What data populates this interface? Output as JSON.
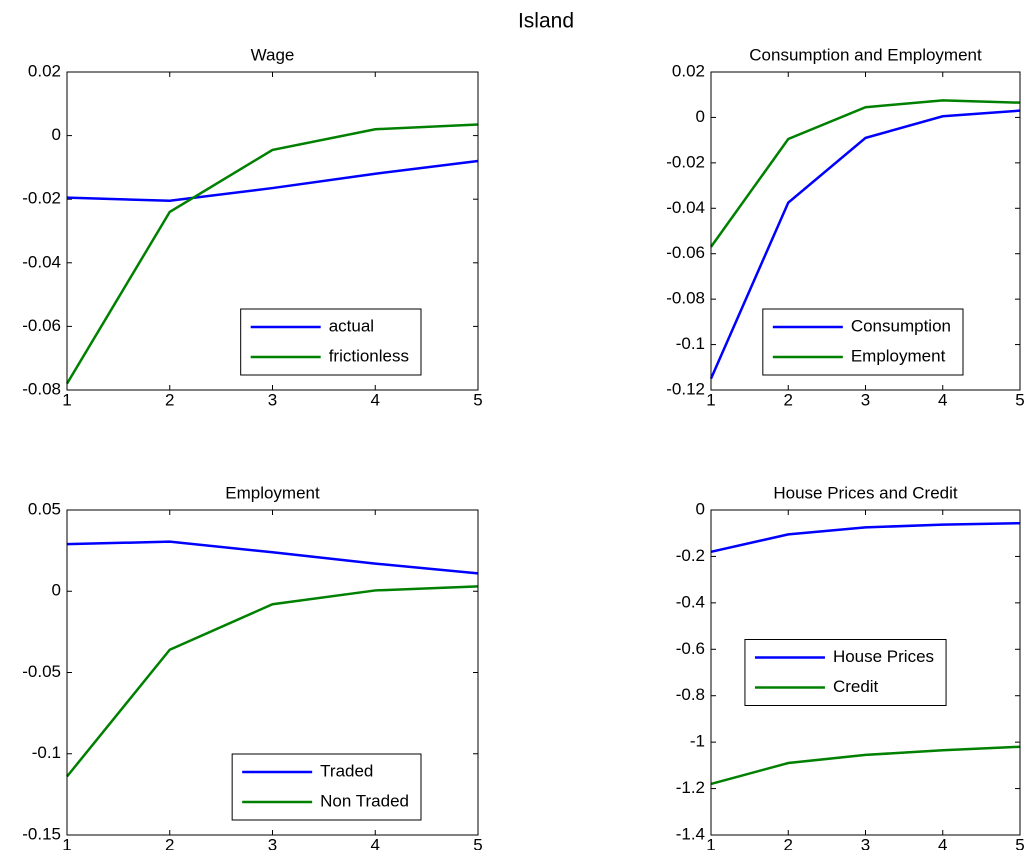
{
  "title": "Island",
  "chart_data": [
    {
      "type": "line",
      "title": "Wage",
      "x": [
        1,
        2,
        3,
        4,
        5
      ],
      "xlim": [
        1,
        5
      ],
      "xticks": [
        1,
        2,
        3,
        4,
        5
      ],
      "ylim": [
        -0.08,
        0.02
      ],
      "yticks": [
        -0.08,
        -0.06,
        -0.04,
        -0.02,
        0,
        0.02
      ],
      "legend": "lower right",
      "series": [
        {
          "name": "actual",
          "color": "#0000ff",
          "values": [
            -0.0195,
            -0.0205,
            -0.0165,
            -0.012,
            -0.008
          ]
        },
        {
          "name": "frictionless",
          "color": "#008000",
          "values": [
            -0.078,
            -0.024,
            -0.0045,
            0.002,
            0.0035
          ]
        }
      ]
    },
    {
      "type": "line",
      "title": "Consumption and Employment",
      "x": [
        1,
        2,
        3,
        4,
        5
      ],
      "xlim": [
        1,
        5
      ],
      "xticks": [
        1,
        2,
        3,
        4,
        5
      ],
      "ylim": [
        -0.12,
        0.02
      ],
      "yticks": [
        -0.12,
        -0.1,
        -0.08,
        -0.06,
        -0.04,
        -0.02,
        0,
        0.02
      ],
      "legend": "lower right",
      "series": [
        {
          "name": "Consumption",
          "color": "#0000ff",
          "values": [
            -0.115,
            -0.0375,
            -0.009,
            0.0005,
            0.003
          ]
        },
        {
          "name": "Employment",
          "color": "#008000",
          "values": [
            -0.057,
            -0.0095,
            0.0045,
            0.0075,
            0.0065
          ]
        }
      ]
    },
    {
      "type": "line",
      "title": "Employment",
      "x": [
        1,
        2,
        3,
        4,
        5
      ],
      "xlim": [
        1,
        5
      ],
      "xticks": [
        1,
        2,
        3,
        4,
        5
      ],
      "ylim": [
        -0.15,
        0.05
      ],
      "yticks": [
        -0.15,
        -0.1,
        -0.05,
        0,
        0.05
      ],
      "legend": "lower right",
      "series": [
        {
          "name": "Traded",
          "color": "#0000ff",
          "values": [
            0.029,
            0.0305,
            0.024,
            0.017,
            0.011
          ]
        },
        {
          "name": "Non Traded",
          "color": "#008000",
          "values": [
            -0.114,
            -0.036,
            -0.008,
            0.0005,
            0.003
          ]
        }
      ]
    },
    {
      "type": "line",
      "title": "House Prices and Credit",
      "x": [
        1,
        2,
        3,
        4,
        5
      ],
      "xlim": [
        1,
        5
      ],
      "xticks": [
        1,
        2,
        3,
        4,
        5
      ],
      "ylim": [
        -1.4,
        0
      ],
      "yticks": [
        -1.4,
        -1.2,
        -1,
        -0.8,
        -0.6,
        -0.4,
        -0.2,
        0
      ],
      "legend": "center",
      "series": [
        {
          "name": "House Prices",
          "color": "#0000ff",
          "values": [
            -0.18,
            -0.105,
            -0.075,
            -0.063,
            -0.057
          ]
        },
        {
          "name": "Credit",
          "color": "#008000",
          "values": [
            -1.18,
            -1.09,
            -1.055,
            -1.035,
            -1.02
          ]
        }
      ]
    }
  ]
}
